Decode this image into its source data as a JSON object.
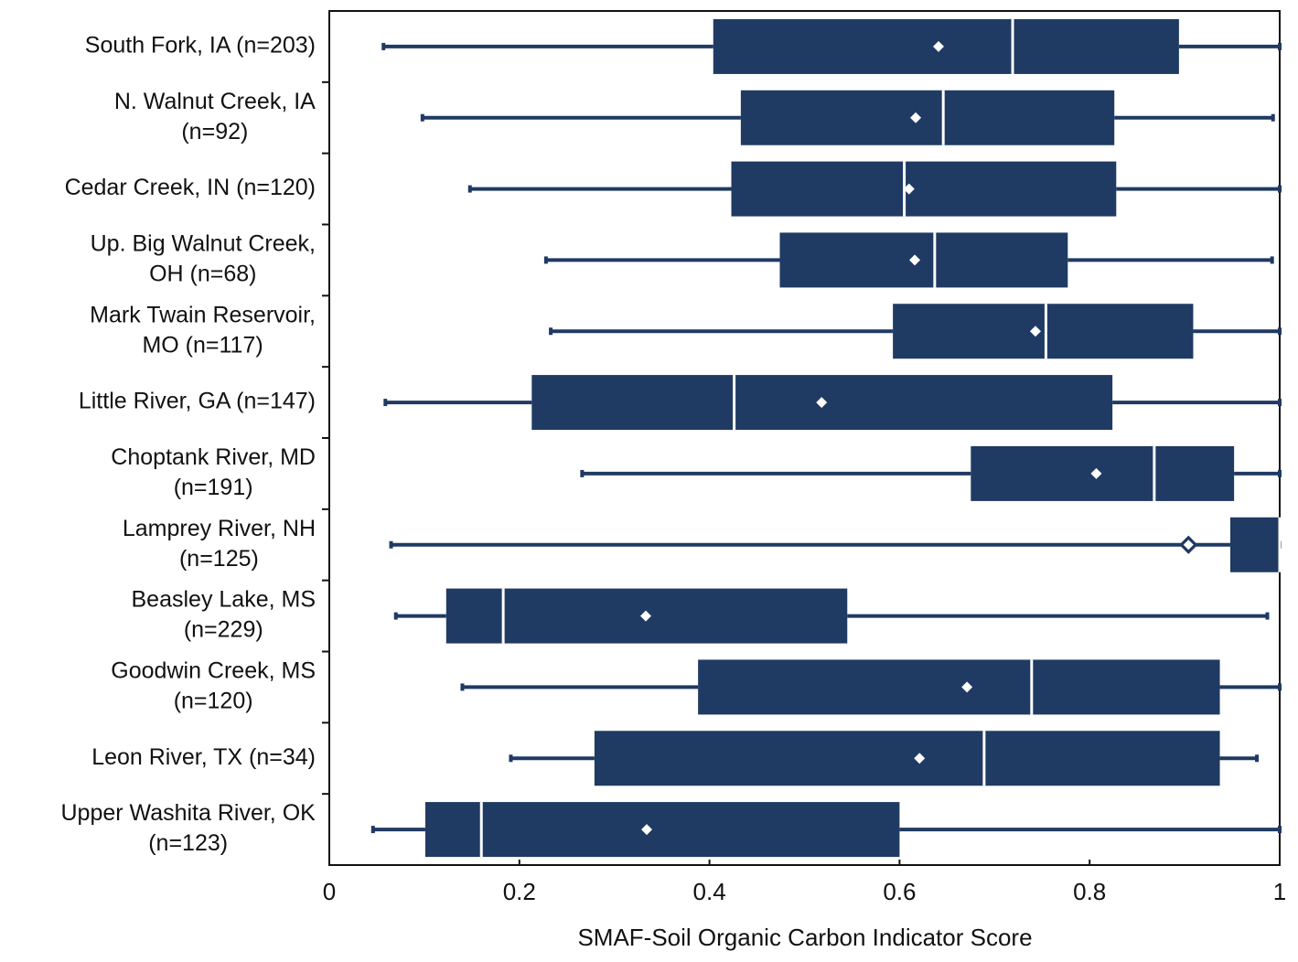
{
  "chart_data": {
    "type": "boxplot",
    "color": "#1f3a63",
    "xlabel": "SMAF-Soil Organic Carbon Indicator Score",
    "xlim": [
      0,
      1
    ],
    "xticks": [
      0,
      0.2,
      0.4,
      0.6,
      0.8,
      1
    ],
    "categories": [
      [
        "South Fork, IA (n=203)"
      ],
      [
        "N. Walnut Creek, IA",
        "(n=92)"
      ],
      [
        "Cedar Creek, IN (n=120)"
      ],
      [
        "Up. Big Walnut Creek,",
        "OH (n=68)"
      ],
      [
        "Mark Twain Reservoir,",
        "MO (n=117)"
      ],
      [
        "Little River, GA (n=147)"
      ],
      [
        "Choptank River, MD",
        "(n=191)"
      ],
      [
        "Lamprey River, NH",
        "(n=125)"
      ],
      [
        "Beasley Lake, MS",
        "(n=229)"
      ],
      [
        "Goodwin Creek, MS",
        "(n=120)"
      ],
      [
        "Leon River, TX (n=34)"
      ],
      [
        "Upper Washita River, OK",
        "(n=123)"
      ]
    ],
    "stats": [
      {
        "min": 0.057,
        "q1": 0.404,
        "median": 0.719,
        "q3": 0.894,
        "max": 1.0,
        "mean": 0.641
      },
      {
        "min": 0.098,
        "q1": 0.433,
        "median": 0.646,
        "q3": 0.826,
        "max": 0.993,
        "mean": 0.617
      },
      {
        "min": 0.148,
        "q1": 0.423,
        "median": 0.605,
        "q3": 0.828,
        "max": 1.0,
        "mean": 0.61
      },
      {
        "min": 0.228,
        "q1": 0.474,
        "median": 0.637,
        "q3": 0.777,
        "max": 0.992,
        "mean": 0.616
      },
      {
        "min": 0.233,
        "q1": 0.593,
        "median": 0.754,
        "q3": 0.909,
        "max": 1.0,
        "mean": 0.743
      },
      {
        "min": 0.059,
        "q1": 0.213,
        "median": 0.426,
        "q3": 0.824,
        "max": 1.0,
        "mean": 0.518
      },
      {
        "min": 0.266,
        "q1": 0.675,
        "median": 0.868,
        "q3": 0.952,
        "max": 1.0,
        "mean": 0.807
      },
      {
        "min": 0.065,
        "q1": 0.948,
        "median": 1.0,
        "q3": 1.0,
        "max": 1.0,
        "mean": 0.904
      },
      {
        "min": 0.07,
        "q1": 0.123,
        "median": 0.183,
        "q3": 0.545,
        "max": 0.987,
        "mean": 0.333
      },
      {
        "min": 0.14,
        "q1": 0.388,
        "median": 0.739,
        "q3": 0.937,
        "max": 1.0,
        "mean": 0.671
      },
      {
        "min": 0.191,
        "q1": 0.279,
        "median": 0.689,
        "q3": 0.937,
        "max": 0.976,
        "mean": 0.621
      },
      {
        "min": 0.046,
        "q1": 0.101,
        "median": 0.16,
        "q3": 0.6,
        "max": 1.0,
        "mean": 0.334
      }
    ]
  }
}
